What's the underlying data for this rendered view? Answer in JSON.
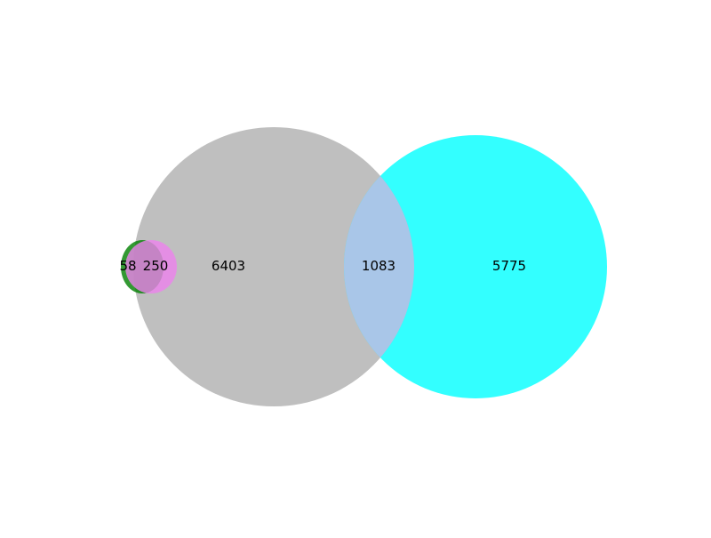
{
  "venn": {
    "type": "venn",
    "sets": [
      {
        "name": "set-a",
        "color": "#008000",
        "opacity": 0.8
      },
      {
        "name": "set-b",
        "color": "#ee82ee",
        "opacity": 0.8
      },
      {
        "name": "set-c",
        "color": "#a9a9a9",
        "opacity": 0.75
      },
      {
        "name": "set-d",
        "color": "#00ffff",
        "opacity": 0.8
      }
    ],
    "overlap_colors": {
      "a_b": "#c0c0c0",
      "c_d": "#a9c6e8"
    },
    "regions": {
      "a_only": "58",
      "a_and_b": "250",
      "c_only": "6403",
      "c_and_d": "1083",
      "d_only": "5775"
    }
  }
}
